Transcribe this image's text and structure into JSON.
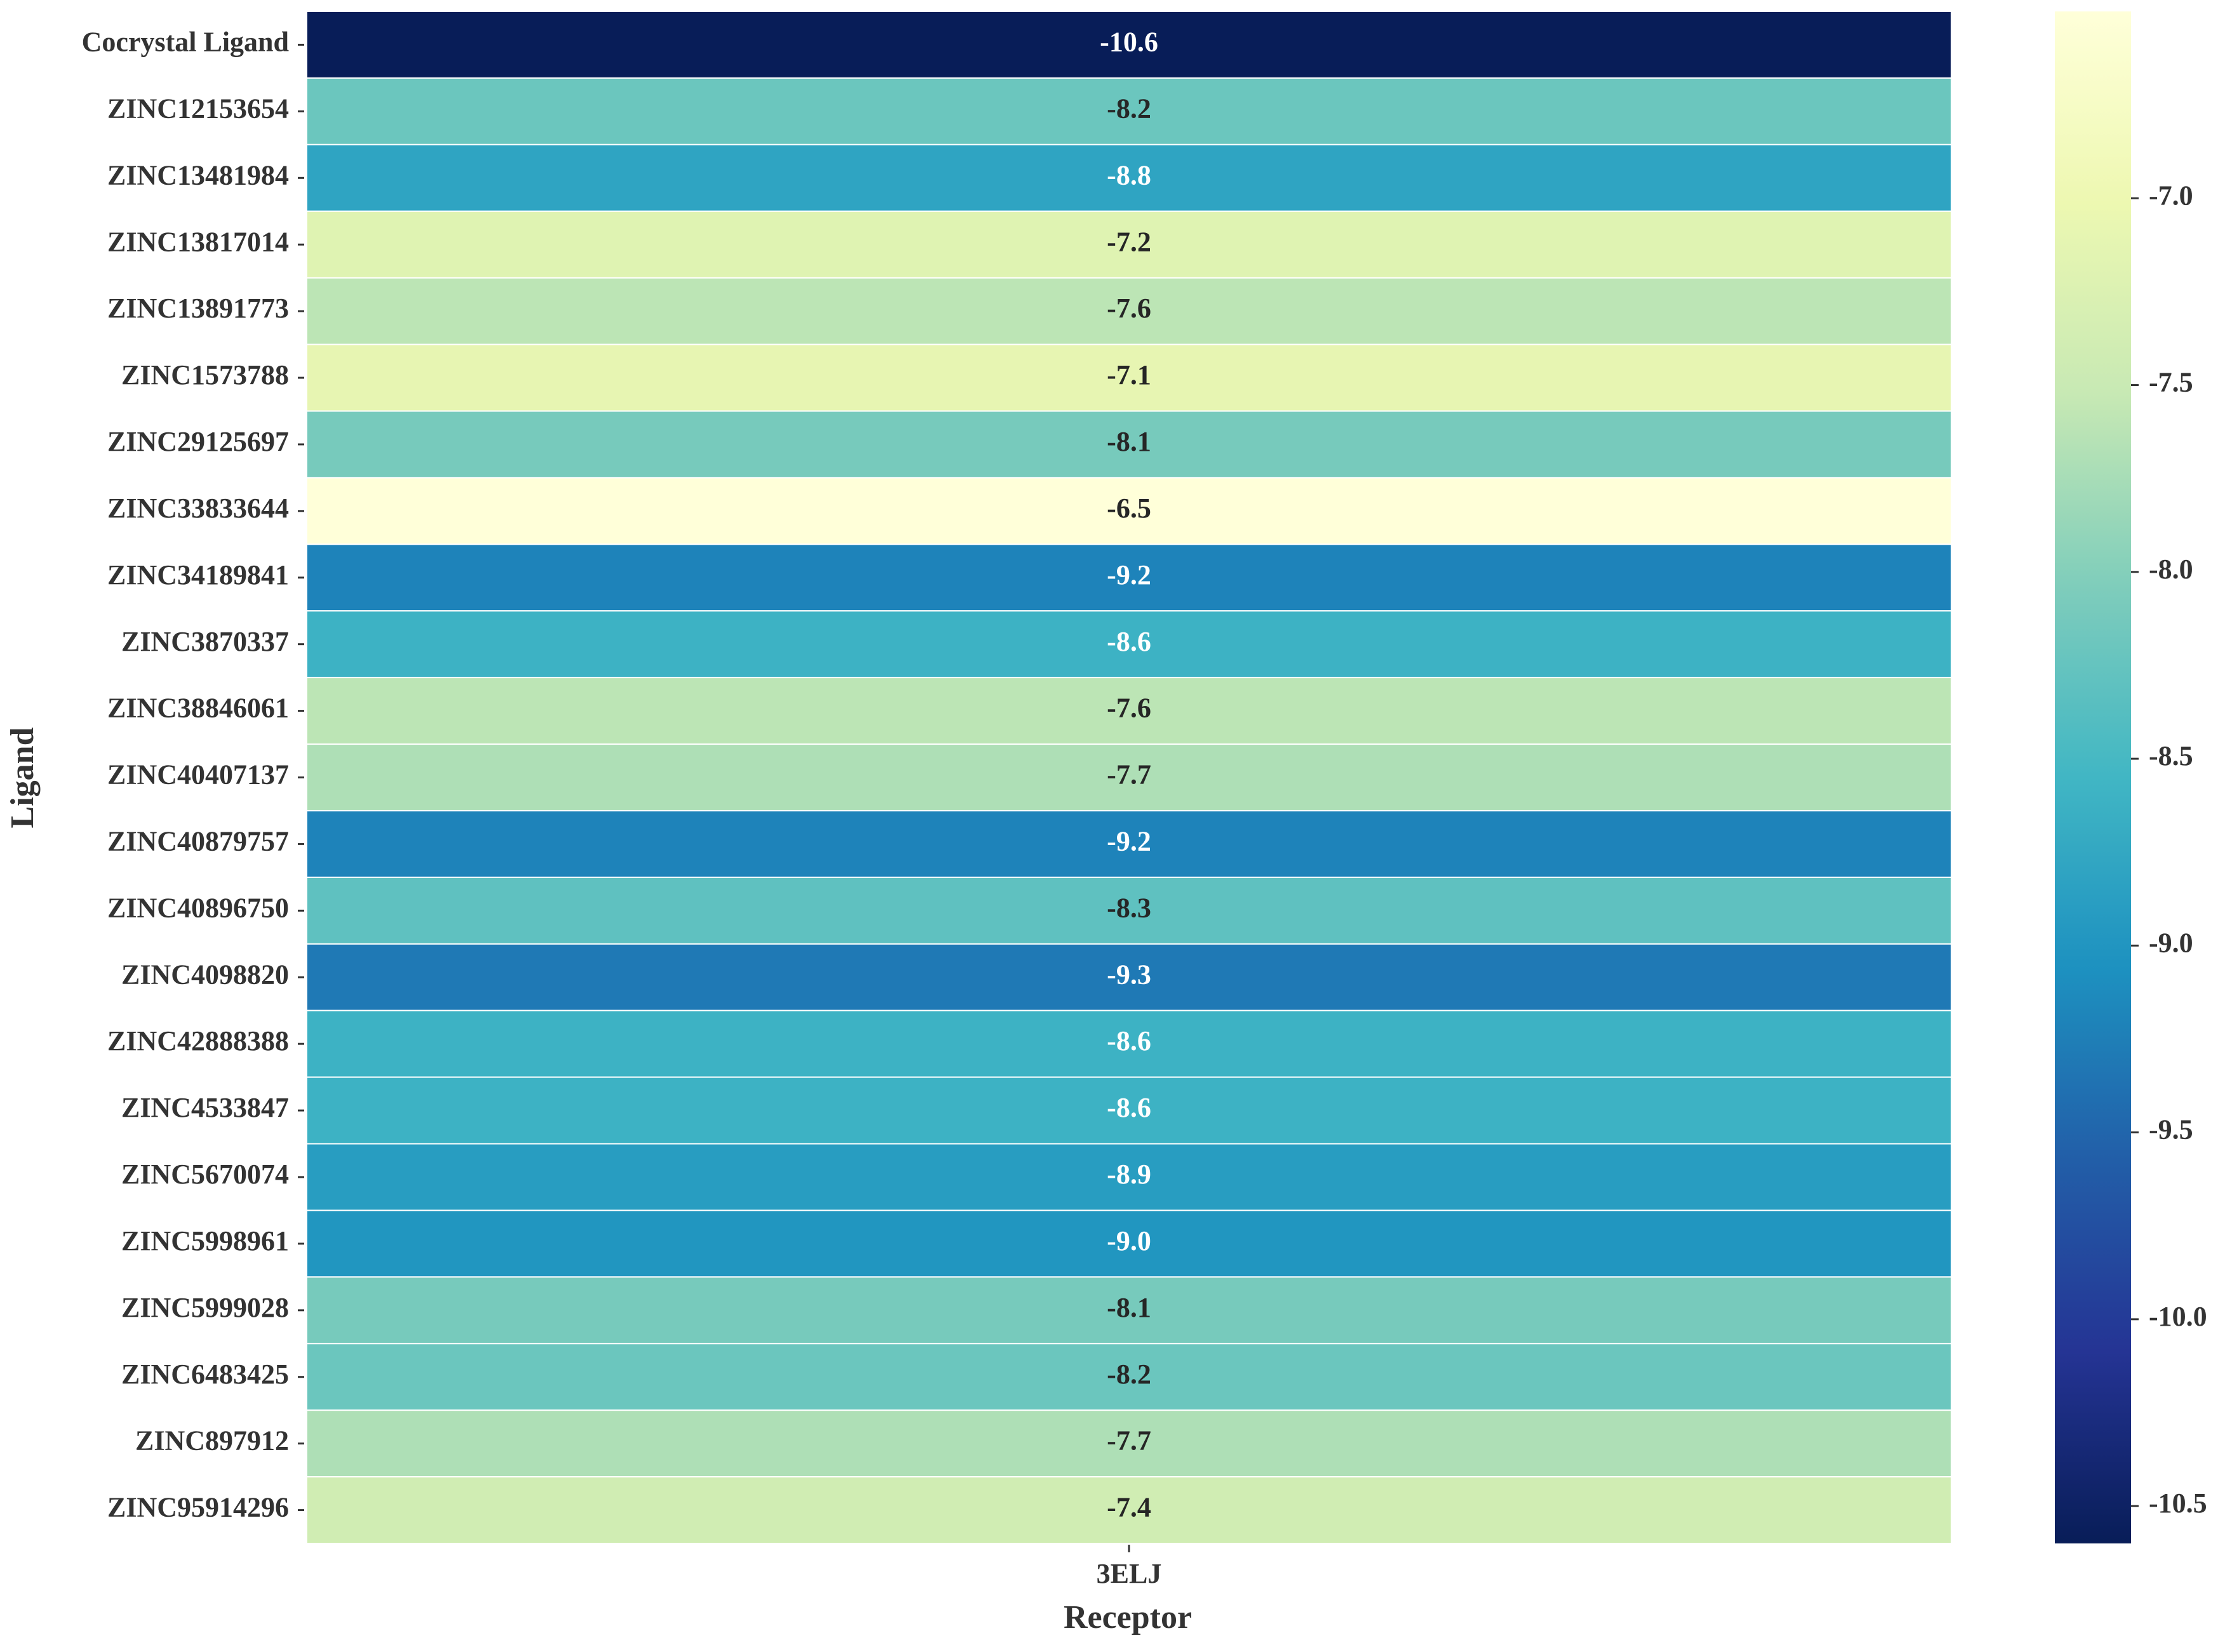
{
  "chart_data": {
    "type": "heatmap",
    "xlabel": "Receptor",
    "ylabel": "Ligand",
    "x": [
      "3ELJ"
    ],
    "categories": [
      "Cocrystal Ligand",
      "ZINC12153654",
      "ZINC13481984",
      "ZINC13817014",
      "ZINC13891773",
      "ZINC1573788",
      "ZINC29125697",
      "ZINC33833644",
      "ZINC34189841",
      "ZINC3870337",
      "ZINC38846061",
      "ZINC40407137",
      "ZINC40879757",
      "ZINC40896750",
      "ZINC4098820",
      "ZINC42888388",
      "ZINC4533847",
      "ZINC5670074",
      "ZINC5998961",
      "ZINC5999028",
      "ZINC6483425",
      "ZINC897912",
      "ZINC95914296"
    ],
    "values": [
      -10.6,
      -8.2,
      -8.8,
      -7.2,
      -7.6,
      -7.1,
      -8.1,
      -6.5,
      -9.2,
      -8.6,
      -7.6,
      -7.7,
      -9.2,
      -8.3,
      -9.3,
      -8.6,
      -8.6,
      -8.9,
      -9,
      -8.1,
      -8.2,
      -7.7,
      -7.4
    ],
    "value_labels": [
      "-10.6",
      "-8.2",
      "-8.8",
      "-7.2",
      "-7.6",
      "-7.1",
      "-8.1",
      "-6.5",
      "-9.2",
      "-8.6",
      "-7.6",
      "-7.7",
      "-9.2",
      "-8.3",
      "-9.3",
      "-8.6",
      "-8.6",
      "-8.9",
      "-9.0",
      "-8.1",
      "-8.2",
      "-7.7",
      "-7.4"
    ],
    "colormap": "YlGnBu_r",
    "zlim": [
      -10.6,
      -6.5
    ],
    "zticks": [
      {
        "value": -7,
        "label": "-7.0"
      },
      {
        "value": -7.5,
        "label": "-7.5"
      },
      {
        "value": -8,
        "label": "-8.0"
      },
      {
        "value": -8.5,
        "label": "-8.5"
      },
      {
        "value": -9,
        "label": "-9.0"
      },
      {
        "value": -9.5,
        "label": "-9.5"
      },
      {
        "value": -10,
        "label": "-10.0"
      },
      {
        "value": -10.5,
        "label": "-10.5"
      }
    ]
  }
}
